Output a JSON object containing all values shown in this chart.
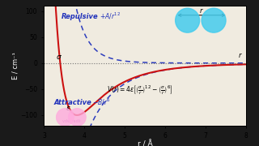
{
  "xlabel": "r / Å",
  "ylabel": "E / cm⁻¹",
  "xlim": [
    3.0,
    8.0
  ],
  "ylim": [
    -120,
    110
  ],
  "yticks": [
    -100,
    -50,
    0,
    50,
    100
  ],
  "xticks": [
    3.0,
    4.0,
    5.0,
    6.0,
    7.0,
    8.0
  ],
  "sigma": 3.4,
  "epsilon": 100,
  "bg_color": "#1a1a1a",
  "plot_bg": "#f0ebe0",
  "lj_color": "#cc1111",
  "blue_color": "#2233bb",
  "zero_line_color": "#666666"
}
